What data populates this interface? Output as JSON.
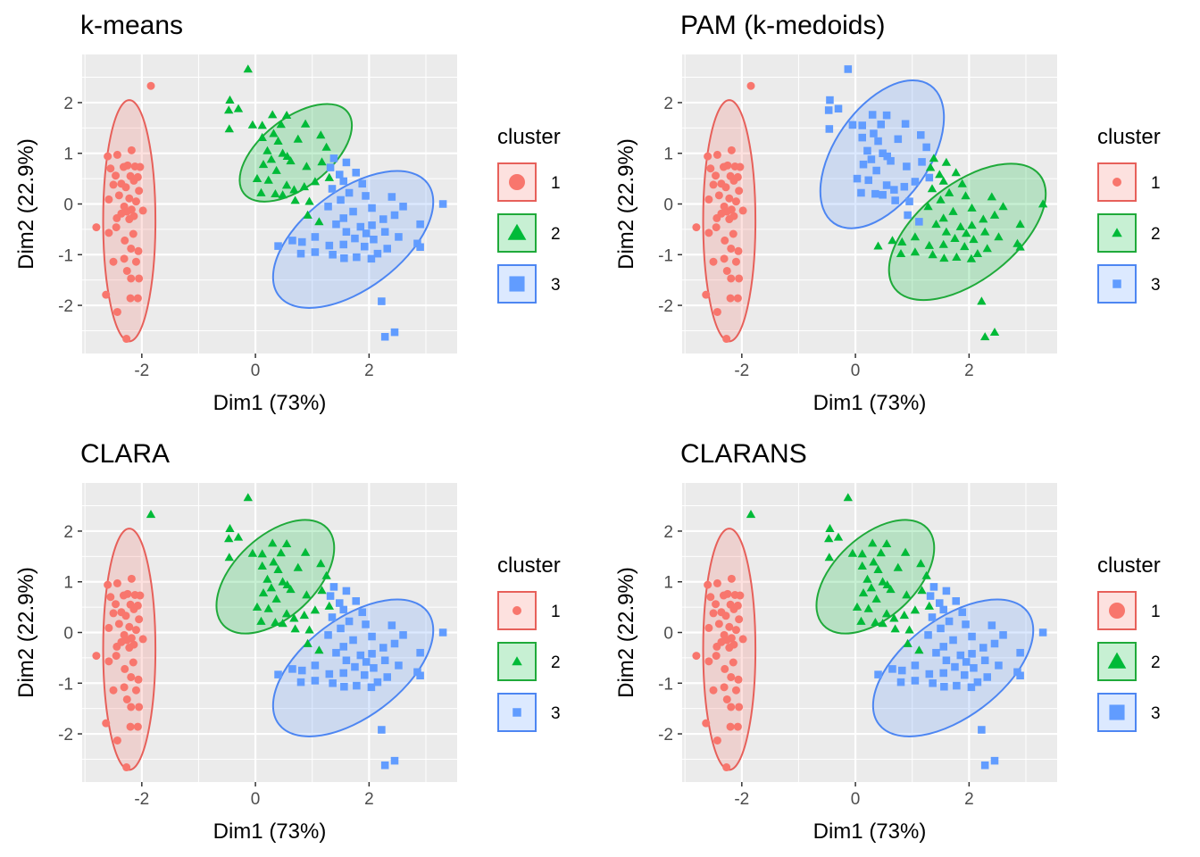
{
  "style": {
    "panel_bg": "#EBEBEB",
    "grid_color": "#FFFFFF",
    "tick_color": "#333333",
    "title_color": "#000000",
    "colors": {
      "1": "#F8766D",
      "2": "#00BA38",
      "3": "#619CFF"
    },
    "ellipse_stroke": {
      "1": "#E7605A",
      "2": "#1FAA3A",
      "3": "#4D86F2"
    },
    "ellipse_fill_opacity": 0.22,
    "shapes": {
      "1": "circle",
      "2": "triangle",
      "3": "square"
    }
  },
  "chart_data": [
    {
      "type": "scatter",
      "title": "k-means",
      "xlabel": "Dim1 (73%)",
      "ylabel": "Dim2 (22.9%)",
      "xlim": [
        -3.05,
        3.55
      ],
      "ylim": [
        -2.95,
        2.95
      ],
      "xticks": [
        -2,
        0,
        2
      ],
      "yticks": [
        -2,
        -1,
        0,
        1,
        2
      ],
      "grid": true,
      "legend_title": "cluster",
      "legend_labels": [
        "1",
        "2",
        "3"
      ],
      "legend_placement": "right",
      "legend_large": true,
      "assignment": {
        "A": "1",
        "B": "2",
        "C": "3",
        "X": "1"
      },
      "ellipses": [
        {
          "cluster": "1",
          "cx": -2.22,
          "cy": -0.33,
          "rx": 0.46,
          "ry": 2.38,
          "angle": 0
        },
        {
          "cluster": "2",
          "cx": 0.71,
          "cy": 1.01,
          "rx": 1.16,
          "ry": 0.68,
          "angle": -38
        },
        {
          "cluster": "3",
          "cx": 1.72,
          "cy": -0.7,
          "rx": 1.64,
          "ry": 0.97,
          "angle": -37
        }
      ]
    },
    {
      "type": "scatter",
      "title": "PAM (k-medoids)",
      "xlabel": "Dim1 (73%)",
      "ylabel": "Dim2 (22.9%)",
      "xlim": [
        -3.05,
        3.55
      ],
      "ylim": [
        -2.95,
        2.95
      ],
      "xticks": [
        -2,
        0,
        2
      ],
      "yticks": [
        -2,
        -1,
        0,
        1,
        2
      ],
      "grid": true,
      "legend_title": "cluster",
      "legend_labels": [
        "1",
        "2",
        "3"
      ],
      "legend_placement": "right",
      "legend_large": false,
      "assignment": {
        "A": "1",
        "B": "3",
        "C": "2",
        "X": "1"
      },
      "ellipses": [
        {
          "cluster": "1",
          "cx": -2.22,
          "cy": -0.33,
          "rx": 0.46,
          "ry": 2.38,
          "angle": 0
        },
        {
          "cluster": "3",
          "cx": 0.47,
          "cy": 0.98,
          "rx": 1.48,
          "ry": 0.93,
          "angle": -55
        },
        {
          "cluster": "2",
          "cx": 1.97,
          "cy": -0.55,
          "rx": 1.62,
          "ry": 0.95,
          "angle": -38
        }
      ]
    },
    {
      "type": "scatter",
      "title": "CLARA",
      "xlabel": "Dim1 (73%)",
      "ylabel": "Dim2 (22.9%)",
      "xlim": [
        -3.05,
        3.55
      ],
      "ylim": [
        -2.95,
        2.95
      ],
      "xticks": [
        -2,
        0,
        2
      ],
      "yticks": [
        -2,
        -1,
        0,
        1,
        2
      ],
      "grid": true,
      "legend_title": "cluster",
      "legend_labels": [
        "1",
        "2",
        "3"
      ],
      "legend_placement": "right",
      "legend_large": false,
      "assignment": {
        "A": "1",
        "B": "2",
        "C": "3",
        "X": "2"
      },
      "ellipses": [
        {
          "cluster": "1",
          "cx": -2.22,
          "cy": -0.33,
          "rx": 0.46,
          "ry": 2.38,
          "angle": 0
        },
        {
          "cluster": "2",
          "cx": 0.35,
          "cy": 1.1,
          "rx": 1.25,
          "ry": 0.8,
          "angle": -43
        },
        {
          "cluster": "3",
          "cx": 1.72,
          "cy": -0.7,
          "rx": 1.64,
          "ry": 0.97,
          "angle": -37
        }
      ]
    },
    {
      "type": "scatter",
      "title": "CLARANS",
      "xlabel": "Dim1 (73%)",
      "ylabel": "Dim2 (22.9%)",
      "xlim": [
        -3.05,
        3.55
      ],
      "ylim": [
        -2.95,
        2.95
      ],
      "xticks": [
        -2,
        0,
        2
      ],
      "yticks": [
        -2,
        -1,
        0,
        1,
        2
      ],
      "grid": true,
      "legend_title": "cluster",
      "legend_labels": [
        "1",
        "2",
        "3"
      ],
      "legend_placement": "right",
      "legend_large": true,
      "assignment": {
        "A": "1",
        "B": "2",
        "C": "3",
        "X": "2"
      },
      "ellipses": [
        {
          "cluster": "1",
          "cx": -2.22,
          "cy": -0.33,
          "rx": 0.46,
          "ry": 2.38,
          "angle": 0
        },
        {
          "cluster": "2",
          "cx": 0.35,
          "cy": 1.1,
          "rx": 1.25,
          "ry": 0.8,
          "angle": -43
        },
        {
          "cluster": "3",
          "cx": 1.72,
          "cy": -0.7,
          "rx": 1.64,
          "ry": 0.97,
          "angle": -37
        }
      ]
    }
  ],
  "points": [
    {
      "x": -1.84,
      "y": 2.33,
      "g": "X"
    },
    {
      "x": -2.18,
      "y": 1.06,
      "g": "A"
    },
    {
      "x": -2.6,
      "y": 0.94,
      "g": "A"
    },
    {
      "x": -2.43,
      "y": 0.97,
      "g": "A"
    },
    {
      "x": -2.25,
      "y": 0.76,
      "g": "A"
    },
    {
      "x": -2.12,
      "y": 0.74,
      "g": "A"
    },
    {
      "x": -2.03,
      "y": 0.73,
      "g": "A"
    },
    {
      "x": -2.32,
      "y": 0.73,
      "g": "A"
    },
    {
      "x": -2.55,
      "y": 0.7,
      "g": "A"
    },
    {
      "x": -2.46,
      "y": 0.56,
      "g": "A"
    },
    {
      "x": -2.2,
      "y": 0.55,
      "g": "A"
    },
    {
      "x": -2.07,
      "y": 0.53,
      "g": "A"
    },
    {
      "x": -2.14,
      "y": 0.46,
      "g": "A"
    },
    {
      "x": -2.36,
      "y": 0.4,
      "g": "A"
    },
    {
      "x": -2.5,
      "y": 0.38,
      "g": "A"
    },
    {
      "x": -2.28,
      "y": 0.33,
      "g": "A"
    },
    {
      "x": -2.05,
      "y": 0.26,
      "g": "A"
    },
    {
      "x": -2.4,
      "y": 0.17,
      "g": "A"
    },
    {
      "x": -2.22,
      "y": 0.11,
      "g": "A"
    },
    {
      "x": -2.58,
      "y": 0.09,
      "g": "A"
    },
    {
      "x": -2.1,
      "y": 0.05,
      "g": "A"
    },
    {
      "x": -2.31,
      "y": -0.05,
      "g": "A"
    },
    {
      "x": -2.18,
      "y": -0.11,
      "g": "A"
    },
    {
      "x": -2.26,
      "y": -0.15,
      "g": "A"
    },
    {
      "x": -2.36,
      "y": -0.19,
      "g": "A"
    },
    {
      "x": -1.98,
      "y": -0.13,
      "g": "A"
    },
    {
      "x": -2.14,
      "y": -0.24,
      "g": "A"
    },
    {
      "x": -2.44,
      "y": -0.28,
      "g": "A"
    },
    {
      "x": -2.22,
      "y": -0.3,
      "g": "A"
    },
    {
      "x": -2.8,
      "y": -0.46,
      "g": "A"
    },
    {
      "x": -2.45,
      "y": -0.46,
      "g": "A"
    },
    {
      "x": -2.58,
      "y": -0.57,
      "g": "A"
    },
    {
      "x": -2.15,
      "y": -0.59,
      "g": "A"
    },
    {
      "x": -2.3,
      "y": -0.72,
      "g": "A"
    },
    {
      "x": -2.19,
      "y": -0.88,
      "g": "A"
    },
    {
      "x": -2.06,
      "y": -0.93,
      "g": "A"
    },
    {
      "x": -2.31,
      "y": -1.08,
      "g": "A"
    },
    {
      "x": -2.5,
      "y": -1.14,
      "g": "A"
    },
    {
      "x": -2.1,
      "y": -1.14,
      "g": "A"
    },
    {
      "x": -2.26,
      "y": -1.32,
      "g": "A"
    },
    {
      "x": -2.19,
      "y": -1.47,
      "g": "A"
    },
    {
      "x": -2.05,
      "y": -1.47,
      "g": "A"
    },
    {
      "x": -2.63,
      "y": -1.79,
      "g": "A"
    },
    {
      "x": -2.2,
      "y": -1.86,
      "g": "A"
    },
    {
      "x": -2.07,
      "y": -1.86,
      "g": "A"
    },
    {
      "x": -2.43,
      "y": -2.13,
      "g": "A"
    },
    {
      "x": -2.27,
      "y": -2.66,
      "g": "A"
    },
    {
      "x": -0.13,
      "y": 2.66,
      "g": "B"
    },
    {
      "x": -0.45,
      "y": 2.05,
      "g": "B"
    },
    {
      "x": -0.47,
      "y": 1.85,
      "g": "B"
    },
    {
      "x": -0.3,
      "y": 1.88,
      "g": "B"
    },
    {
      "x": 0.3,
      "y": 1.76,
      "g": "B"
    },
    {
      "x": 0.55,
      "y": 1.75,
      "g": "B"
    },
    {
      "x": -0.05,
      "y": 1.56,
      "g": "B"
    },
    {
      "x": 0.12,
      "y": 1.55,
      "g": "B"
    },
    {
      "x": 0.45,
      "y": 1.57,
      "g": "B"
    },
    {
      "x": 0.88,
      "y": 1.58,
      "g": "B"
    },
    {
      "x": -0.46,
      "y": 1.48,
      "g": "B"
    },
    {
      "x": 0.32,
      "y": 1.39,
      "g": "B"
    },
    {
      "x": 1.15,
      "y": 1.36,
      "g": "B"
    },
    {
      "x": 0.12,
      "y": 1.31,
      "g": "B"
    },
    {
      "x": 0.4,
      "y": 1.24,
      "g": "B"
    },
    {
      "x": 0.75,
      "y": 1.28,
      "g": "B"
    },
    {
      "x": 1.25,
      "y": 1.12,
      "g": "B"
    },
    {
      "x": 0.21,
      "y": 1.05,
      "g": "B"
    },
    {
      "x": 0.48,
      "y": 1.0,
      "g": "B"
    },
    {
      "x": 0.56,
      "y": 0.94,
      "g": "B"
    },
    {
      "x": 0.28,
      "y": 0.88,
      "g": "B"
    },
    {
      "x": 0.62,
      "y": 0.85,
      "g": "B"
    },
    {
      "x": 0.14,
      "y": 0.78,
      "g": "B"
    },
    {
      "x": 0.37,
      "y": 0.66,
      "g": "B"
    },
    {
      "x": 0.9,
      "y": 0.74,
      "g": "B"
    },
    {
      "x": 1.17,
      "y": 0.83,
      "g": "B"
    },
    {
      "x": 0.03,
      "y": 0.5,
      "g": "B"
    },
    {
      "x": 0.23,
      "y": 0.47,
      "g": "B"
    },
    {
      "x": 0.55,
      "y": 0.37,
      "g": "B"
    },
    {
      "x": 0.68,
      "y": 0.28,
      "g": "B"
    },
    {
      "x": 0.86,
      "y": 0.34,
      "g": "B"
    },
    {
      "x": 1.05,
      "y": 0.44,
      "g": "B"
    },
    {
      "x": 0.1,
      "y": 0.22,
      "g": "B"
    },
    {
      "x": 0.35,
      "y": 0.2,
      "g": "B"
    },
    {
      "x": 0.48,
      "y": 0.18,
      "g": "B"
    },
    {
      "x": 0.7,
      "y": 0.07,
      "g": "B"
    },
    {
      "x": 0.95,
      "y": 0.05,
      "g": "B"
    },
    {
      "x": 1.3,
      "y": 0.52,
      "g": "B"
    },
    {
      "x": 0.92,
      "y": -0.22,
      "g": "B"
    },
    {
      "x": 1.12,
      "y": -0.35,
      "g": "B"
    },
    {
      "x": 1.38,
      "y": 0.9,
      "g": "C"
    },
    {
      "x": 1.6,
      "y": 0.82,
      "g": "C"
    },
    {
      "x": 1.32,
      "y": 0.72,
      "g": "C"
    },
    {
      "x": 1.48,
      "y": 0.58,
      "g": "C"
    },
    {
      "x": 1.77,
      "y": 0.62,
      "g": "C"
    },
    {
      "x": 1.55,
      "y": 0.45,
      "g": "C"
    },
    {
      "x": 1.88,
      "y": 0.4,
      "g": "C"
    },
    {
      "x": 1.35,
      "y": 0.3,
      "g": "C"
    },
    {
      "x": 1.65,
      "y": 0.22,
      "g": "C"
    },
    {
      "x": 1.94,
      "y": 0.16,
      "g": "C"
    },
    {
      "x": 1.5,
      "y": 0.08,
      "g": "C"
    },
    {
      "x": 2.4,
      "y": 0.14,
      "g": "C"
    },
    {
      "x": 1.28,
      "y": -0.05,
      "g": "C"
    },
    {
      "x": 1.72,
      "y": -0.15,
      "g": "C"
    },
    {
      "x": 2.05,
      "y": -0.08,
      "g": "C"
    },
    {
      "x": 2.6,
      "y": -0.05,
      "g": "C"
    },
    {
      "x": 3.3,
      "y": 0.0,
      "g": "C"
    },
    {
      "x": 1.55,
      "y": -0.28,
      "g": "C"
    },
    {
      "x": 2.25,
      "y": -0.3,
      "g": "C"
    },
    {
      "x": 2.45,
      "y": -0.22,
      "g": "C"
    },
    {
      "x": 1.42,
      "y": -0.4,
      "g": "C"
    },
    {
      "x": 1.85,
      "y": -0.45,
      "g": "C"
    },
    {
      "x": 2.05,
      "y": -0.42,
      "g": "C"
    },
    {
      "x": 2.9,
      "y": -0.4,
      "g": "C"
    },
    {
      "x": 1.6,
      "y": -0.55,
      "g": "C"
    },
    {
      "x": 1.95,
      "y": -0.58,
      "g": "C"
    },
    {
      "x": 2.28,
      "y": -0.55,
      "g": "C"
    },
    {
      "x": 2.52,
      "y": -0.65,
      "g": "C"
    },
    {
      "x": 1.75,
      "y": -0.68,
      "g": "C"
    },
    {
      "x": 2.08,
      "y": -0.7,
      "g": "C"
    },
    {
      "x": 2.85,
      "y": -0.78,
      "g": "C"
    },
    {
      "x": 2.9,
      "y": -0.85,
      "g": "C"
    },
    {
      "x": 1.3,
      "y": -0.82,
      "g": "C"
    },
    {
      "x": 1.55,
      "y": -0.8,
      "g": "C"
    },
    {
      "x": 1.92,
      "y": -0.84,
      "g": "C"
    },
    {
      "x": 2.32,
      "y": -0.88,
      "g": "C"
    },
    {
      "x": 0.4,
      "y": -0.83,
      "g": "C"
    },
    {
      "x": 0.82,
      "y": -0.75,
      "g": "C"
    },
    {
      "x": 0.65,
      "y": -0.72,
      "g": "C"
    },
    {
      "x": 1.05,
      "y": -0.65,
      "g": "C"
    },
    {
      "x": 2.15,
      "y": -0.98,
      "g": "C"
    },
    {
      "x": 1.36,
      "y": -1.0,
      "g": "C"
    },
    {
      "x": 1.05,
      "y": -0.95,
      "g": "C"
    },
    {
      "x": 1.78,
      "y": -1.05,
      "g": "C"
    },
    {
      "x": 2.04,
      "y": -1.08,
      "g": "C"
    },
    {
      "x": 0.8,
      "y": -0.98,
      "g": "C"
    },
    {
      "x": 1.56,
      "y": -1.07,
      "g": "C"
    },
    {
      "x": 2.22,
      "y": -1.92,
      "g": "C"
    },
    {
      "x": 2.45,
      "y": -2.53,
      "g": "C"
    },
    {
      "x": 2.28,
      "y": -2.62,
      "g": "C"
    }
  ]
}
